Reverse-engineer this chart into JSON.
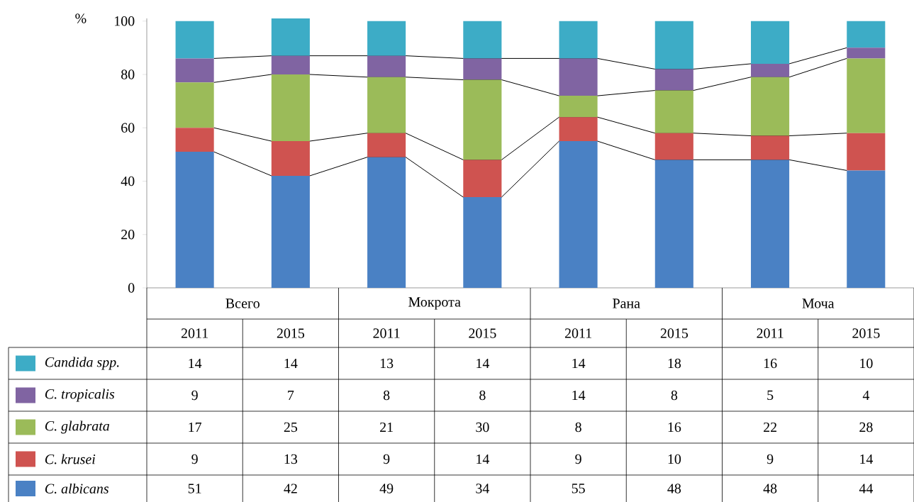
{
  "chart_data": {
    "type": "bar",
    "stacked": true,
    "ylabel": "%",
    "categories": [
      "2011",
      "2015",
      "2011",
      "2015",
      "2011",
      "2015",
      "2011",
      "2015"
    ],
    "annotations": [
      "Всего",
      "Мокрота",
      "Рана",
      "Моча"
    ],
    "series": [
      {
        "name": "C. albicans",
        "color": "#4a81c4",
        "values": [
          51,
          42,
          49,
          34,
          55,
          48,
          48,
          44
        ]
      },
      {
        "name": "C. krusei",
        "color": "#cf5350",
        "values": [
          9,
          13,
          9,
          14,
          9,
          10,
          9,
          14
        ]
      },
      {
        "name": "C. glabrata",
        "color": "#9bbb59",
        "values": [
          17,
          25,
          21,
          30,
          8,
          16,
          22,
          28
        ]
      },
      {
        "name": "C. tropicalis",
        "color": "#8064a2",
        "values": [
          9,
          7,
          8,
          8,
          14,
          8,
          5,
          4
        ]
      },
      {
        "name": "Candida spp.",
        "color": "#3dacc6",
        "values": [
          14,
          14,
          13,
          14,
          14,
          18,
          16,
          10
        ]
      }
    ],
    "ylim": [
      0,
      101
    ],
    "yticks": [
      0,
      20,
      40,
      60,
      80,
      100
    ],
    "data_labels": true,
    "legend": "bottom left"
  }
}
